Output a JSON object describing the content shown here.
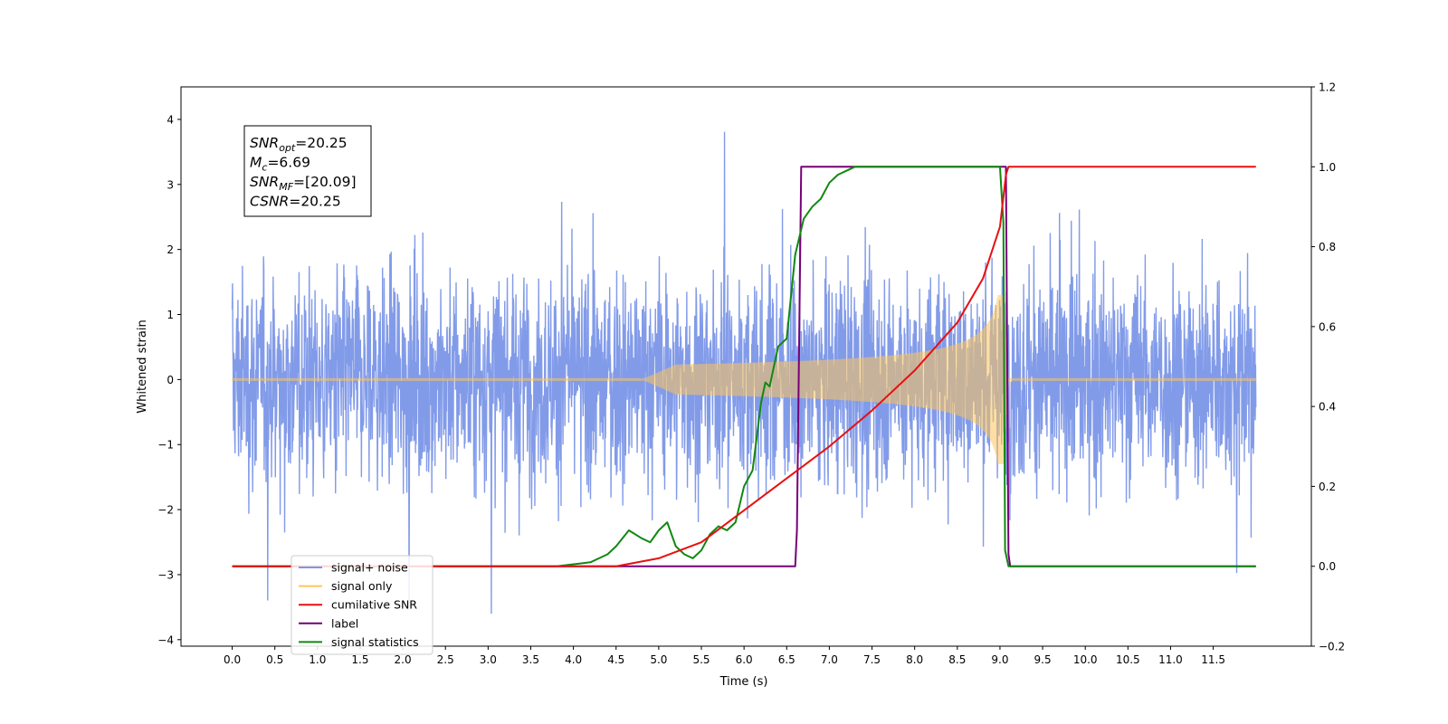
{
  "chart_data": {
    "type": "line",
    "xlabel": "Time (s)",
    "ylabel": "Whitened strain",
    "xlim": [
      -0.6,
      12.65
    ],
    "ylim": [
      -4.1,
      4.5
    ],
    "y2lim": [
      -0.2,
      1.2
    ],
    "x_ticks": [
      0.0,
      0.5,
      1.0,
      1.5,
      2.0,
      2.5,
      3.0,
      3.5,
      4.0,
      4.5,
      5.0,
      5.5,
      6.0,
      6.5,
      7.0,
      7.5,
      8.0,
      8.5,
      9.0,
      9.5,
      10.0,
      10.5,
      11.0,
      11.5
    ],
    "x_tick_labels": [
      "0.0",
      "0.5",
      "1.0",
      "1.5",
      "2.0",
      "2.5",
      "3.0",
      "3.5",
      "4.0",
      "4.5",
      "5.0",
      "5.5",
      "6.0",
      "6.5",
      "7.0",
      "7.5",
      "8.0",
      "8.5",
      "9.0",
      "9.5",
      "10.0",
      "10.5",
      "11.0",
      "11.5"
    ],
    "y_ticks": [
      -4,
      -3,
      -2,
      -1,
      0,
      1,
      2,
      3,
      4
    ],
    "y_tick_labels": [
      "−4",
      "−3",
      "−2",
      "−1",
      "0",
      "1",
      "2",
      "3",
      "4"
    ],
    "y2_ticks": [
      -0.2,
      0.0,
      0.2,
      0.4,
      0.6,
      0.8,
      1.0,
      1.2
    ],
    "y2_tick_labels": [
      "−0.2",
      "0.0",
      "0.2",
      "0.4",
      "0.6",
      "0.8",
      "1.0",
      "1.2"
    ],
    "grid": false,
    "legend_position": "lower-left",
    "annotation": [
      {
        "base": "SNR",
        "sub": "opt",
        "value": "=20.25"
      },
      {
        "base": "M",
        "sub": "c",
        "value": "=6.69"
      },
      {
        "base": "SNR",
        "sub": "MF",
        "value": "=[20.09]"
      },
      {
        "base": "CSNR",
        "sub": "",
        "value": "=20.25"
      }
    ],
    "series": [
      {
        "name": "signal+ noise",
        "color": "#7b96e8",
        "axis": "left",
        "description": "noisy whitened strain, approx. amplitude ±2 with spikes to ±3.7, spanning 0.0–12.0 s"
      },
      {
        "name": "signal only",
        "color": "#ffc55a",
        "axis": "left",
        "description": "chirp growing from ~5.0 s, peak amplitude ~1.3 at ~9.0 s, ringdown then ~0"
      },
      {
        "name": "cumilative SNR",
        "color": "#e81010",
        "axis": "right",
        "x": [
          0.0,
          4.0,
          4.5,
          5.0,
          5.5,
          6.0,
          6.5,
          7.0,
          7.5,
          8.0,
          8.5,
          8.8,
          9.0,
          9.07,
          9.1,
          12.0
        ],
        "y": [
          0.0,
          0.0,
          0.0,
          0.02,
          0.06,
          0.14,
          0.22,
          0.3,
          0.39,
          0.49,
          0.61,
          0.72,
          0.85,
          0.98,
          1.0,
          1.0
        ]
      },
      {
        "name": "label",
        "color": "#770077",
        "axis": "right",
        "x": [
          0.0,
          6.6,
          6.62,
          6.67,
          9.07,
          9.1,
          9.12,
          12.0
        ],
        "y": [
          0.0,
          0.0,
          0.09,
          1.0,
          1.0,
          0.03,
          0.0,
          0.0
        ]
      },
      {
        "name": "signal statistics",
        "color": "#118811",
        "axis": "right",
        "x": [
          0.0,
          3.8,
          4.0,
          4.2,
          4.3,
          4.4,
          4.5,
          4.65,
          4.8,
          4.9,
          5.0,
          5.1,
          5.2,
          5.3,
          5.4,
          5.5,
          5.6,
          5.7,
          5.8,
          5.9,
          6.0,
          6.1,
          6.2,
          6.25,
          6.3,
          6.4,
          6.5,
          6.6,
          6.7,
          6.8,
          6.9,
          7.0,
          7.1,
          7.2,
          7.3,
          7.5,
          8.0,
          8.5,
          9.0,
          9.04,
          9.06,
          9.1,
          12.0
        ],
        "y": [
          0.0,
          0.0,
          0.005,
          0.01,
          0.02,
          0.03,
          0.05,
          0.09,
          0.07,
          0.06,
          0.09,
          0.11,
          0.05,
          0.03,
          0.02,
          0.04,
          0.08,
          0.1,
          0.09,
          0.11,
          0.2,
          0.24,
          0.41,
          0.46,
          0.45,
          0.55,
          0.57,
          0.78,
          0.87,
          0.9,
          0.92,
          0.96,
          0.98,
          0.99,
          1.0,
          1.0,
          1.0,
          1.0,
          1.0,
          0.86,
          0.04,
          0.0,
          0.0
        ]
      }
    ]
  }
}
